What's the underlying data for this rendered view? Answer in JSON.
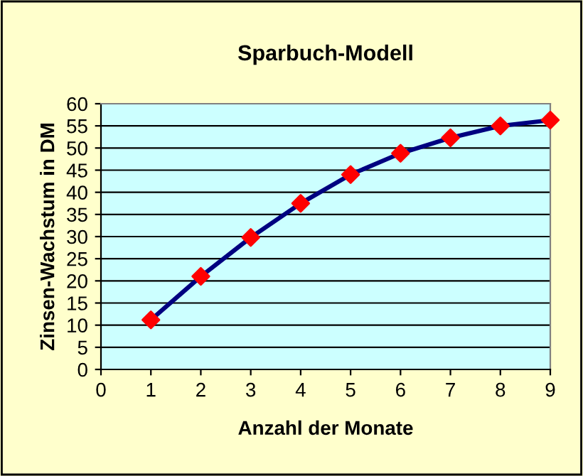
{
  "chart_data": {
    "type": "line",
    "title": "Sparbuch-Modell",
    "xlabel": "Anzahl der Monate",
    "ylabel": "Zinsen-Wachstum in DM",
    "x": [
      1,
      2,
      3,
      4,
      5,
      6,
      7,
      8,
      9
    ],
    "series": [
      {
        "color": "#000080",
        "colors": [
          "#ff0000",
          "#ff0000",
          "#ff0000",
          "#ff0000",
          "#ff0000",
          "#ff0000",
          "#ff0000",
          "#ff0000",
          "#ff0000"
        ],
        "values": [
          11.2,
          21,
          29.8,
          37.5,
          44,
          48.8,
          52.3,
          55,
          56.3
        ]
      }
    ],
    "xlim": [
      0,
      9
    ],
    "xticks": [
      0,
      1,
      2,
      3,
      4,
      5,
      6,
      7,
      8,
      9
    ],
    "ylim": [
      0,
      60
    ],
    "yticks": [
      0,
      5,
      10,
      15,
      20,
      25,
      30,
      35,
      40,
      45,
      50,
      55,
      60
    ],
    "grid": "y",
    "marker": "diamond",
    "line_style": "solid",
    "legend": false
  }
}
